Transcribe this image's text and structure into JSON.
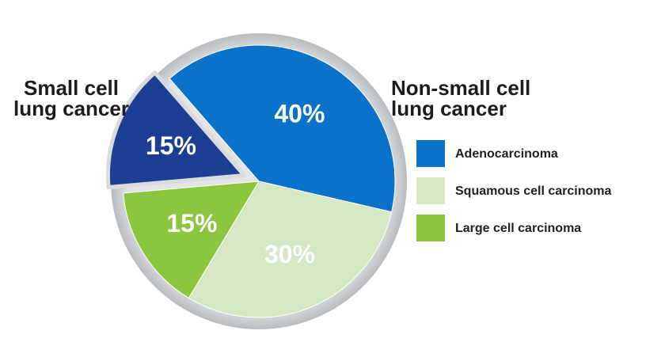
{
  "chart_data": {
    "type": "pie",
    "slices": [
      {
        "label": "Adenocarcinoma",
        "value": 40,
        "display": "40%",
        "color": "#0a72c8",
        "group": "Non-small cell lung cancer"
      },
      {
        "label": "Squamous cell carcinoma",
        "value": 30,
        "display": "30%",
        "color": "#d6e8c3",
        "group": "Non-small cell lung cancer"
      },
      {
        "label": "Large cell carcinoma",
        "value": 15,
        "display": "15%",
        "color": "#8cc63f",
        "group": "Non-small cell lung cancer"
      },
      {
        "label": "Small cell lung cancer",
        "value": 15,
        "display": "15%",
        "color": "#1c3f94",
        "group": "Small cell lung cancer",
        "exploded": true
      }
    ],
    "group_labels": {
      "small_cell": [
        "Small cell",
        "lung cancer"
      ],
      "non_small_cell": [
        "Non-small cell",
        "lung cancer"
      ]
    },
    "legend": {
      "placement": "right",
      "items": [
        {
          "label": "Adenocarcinoma",
          "color": "#0a72c8"
        },
        {
          "label": "Squamous cell carcinoma",
          "color": "#d6e8c3"
        },
        {
          "label": "Large cell carcinoma",
          "color": "#8cc63f"
        }
      ]
    }
  }
}
